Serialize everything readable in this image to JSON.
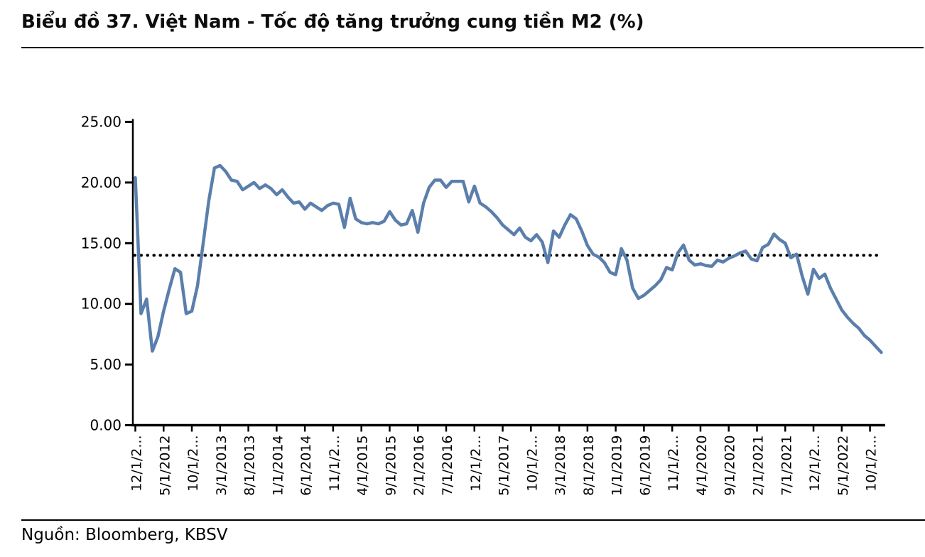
{
  "header": {
    "title": "Biểu đồ 37. Việt Nam - Tốc độ tăng trưởng cung tiền M2 (%)"
  },
  "footer": {
    "source_label": "Nguồn: Bloomberg, KBSV"
  },
  "colors": {
    "line": "#5B7FAC",
    "axis": "#000000",
    "reference_line": "#000000",
    "label_text": "#000000",
    "background": "#ffffff"
  },
  "chart_data": {
    "type": "line",
    "title": "Biểu đồ 37. Việt Nam - Tốc độ tăng trưởng cung tiền M2 (%)",
    "xlabel": "",
    "ylabel": "",
    "ylim": [
      0,
      25
    ],
    "grid": false,
    "legend": "none",
    "y_tick_labels": [
      "25.00",
      "20.00",
      "15.00",
      "10.00",
      "5.00",
      "0.00"
    ],
    "y_tick_values": [
      25,
      20,
      15,
      10,
      5,
      0
    ],
    "x_start": "12/1/2011",
    "x_frequency": "monthly",
    "x_tick_every_n_points": 5,
    "x_tick_labels": [
      "12/1/2...",
      "5/1/2012",
      "10/1/2...",
      "3/1/2013",
      "8/1/2013",
      "1/1/2014",
      "6/1/2014",
      "11/1/2...",
      "4/1/2015",
      "9/1/2015",
      "2/1/2016",
      "7/1/2016",
      "12/1/2...",
      "5/1/2017",
      "10/1/2...",
      "3/1/2018",
      "8/1/2018",
      "1/1/2019",
      "6/1/2019",
      "11/1/2...",
      "4/1/2020",
      "9/1/2020",
      "2/1/2021",
      "7/1/2021",
      "12/1/2...",
      "5/1/2022",
      "10/1/2..."
    ],
    "reference_line": {
      "value": 14.0,
      "style": "dotted"
    },
    "series": [
      {
        "name": "Tốc độ tăng trưởng cung tiền M2 (%)",
        "values": [
          20.4,
          9.2,
          10.4,
          6.1,
          7.3,
          9.4,
          11.2,
          12.9,
          12.6,
          9.2,
          9.4,
          11.5,
          15.0,
          18.5,
          21.2,
          21.4,
          20.9,
          20.2,
          20.1,
          19.4,
          19.7,
          20.0,
          19.5,
          19.8,
          19.5,
          19.0,
          19.4,
          18.8,
          18.3,
          18.4,
          17.8,
          18.3,
          18.0,
          17.7,
          18.1,
          18.3,
          18.2,
          16.3,
          18.7,
          17.0,
          16.7,
          16.6,
          16.7,
          16.6,
          16.8,
          17.6,
          16.9,
          16.5,
          16.6,
          17.7,
          15.9,
          18.3,
          19.6,
          20.2,
          20.2,
          19.6,
          20.1,
          20.1,
          20.1,
          18.4,
          19.7,
          18.3,
          18.0,
          17.6,
          17.1,
          16.5,
          16.1,
          15.7,
          16.25,
          15.5,
          15.2,
          15.7,
          15.1,
          13.4,
          16.0,
          15.5,
          16.5,
          17.35,
          17.0,
          16.0,
          14.8,
          14.1,
          13.85,
          13.4,
          12.6,
          12.4,
          14.55,
          13.6,
          11.3,
          10.45,
          10.7,
          11.1,
          11.5,
          12.0,
          13.0,
          12.8,
          14.2,
          14.85,
          13.6,
          13.2,
          13.3,
          13.15,
          13.1,
          13.6,
          13.45,
          13.75,
          13.95,
          14.2,
          14.35,
          13.7,
          13.55,
          14.65,
          14.9,
          15.75,
          15.3,
          15.0,
          13.8,
          14.1,
          12.3,
          10.8,
          12.85,
          12.1,
          12.45,
          11.3,
          10.4,
          9.5,
          8.9,
          8.4,
          8.0,
          7.4,
          7.0,
          6.5,
          6.0
        ]
      }
    ]
  }
}
